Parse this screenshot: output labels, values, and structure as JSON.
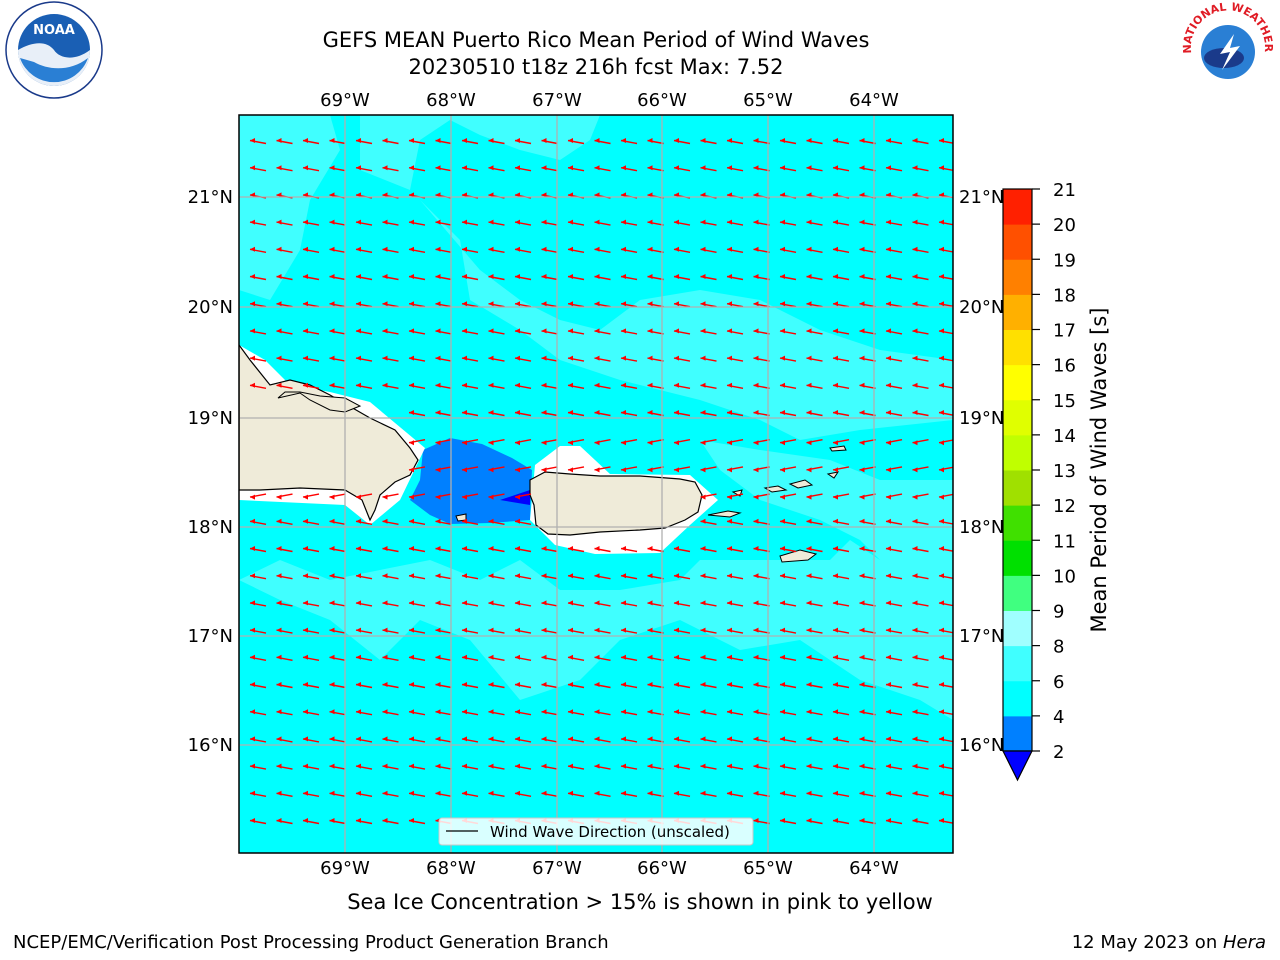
{
  "header": {
    "title_line1": "GEFS MEAN Puerto Rico Mean Period of Wind Waves",
    "title_line2": "20230510 t18z 216h fcst   Max: 7.52"
  },
  "logos": {
    "noaa": {
      "text": "NOAA",
      "icon": "noaa-logo"
    },
    "nws": {
      "text": "NATIONAL WEATHER SERVICE",
      "icon": "nws-logo"
    }
  },
  "map": {
    "lon_labels": [
      "69°W",
      "68°W",
      "67°W",
      "66°W",
      "65°W",
      "64°W"
    ],
    "lat_labels": [
      "21°N",
      "20°N",
      "19°N",
      "18°N",
      "17°N",
      "16°N"
    ],
    "legend_label": "Wind Wave Direction (unscaled)",
    "arrow_color": "#ff0000",
    "ocean_color": "#00ffff",
    "land_color": "#efebd9"
  },
  "colorbar": {
    "label": "Mean Period of Wind Waves [s]",
    "ticks": [
      "2",
      "4",
      "6",
      "8",
      "9",
      "10",
      "11",
      "12",
      "13",
      "14",
      "15",
      "16",
      "17",
      "18",
      "19",
      "20",
      "21"
    ],
    "colors": [
      "#0000ff",
      "#0080ff",
      "#00ffff",
      "#40ffff",
      "#a0ffff",
      "#40ff80",
      "#00e000",
      "#40e000",
      "#a0e000",
      "#c0ff00",
      "#e0ff00",
      "#ffff00",
      "#ffe000",
      "#ffb000",
      "#ff8000",
      "#ff5000",
      "#ff2000",
      "#ff0000"
    ]
  },
  "captions": {
    "sea_ice": "Sea Ice Concentration > 15% is shown in pink to yellow",
    "footer_left": "NCEP/EMC/Verification Post Processing Product Generation Branch",
    "footer_right_prefix": "12 May 2023 on ",
    "footer_right_host": "Hera"
  }
}
